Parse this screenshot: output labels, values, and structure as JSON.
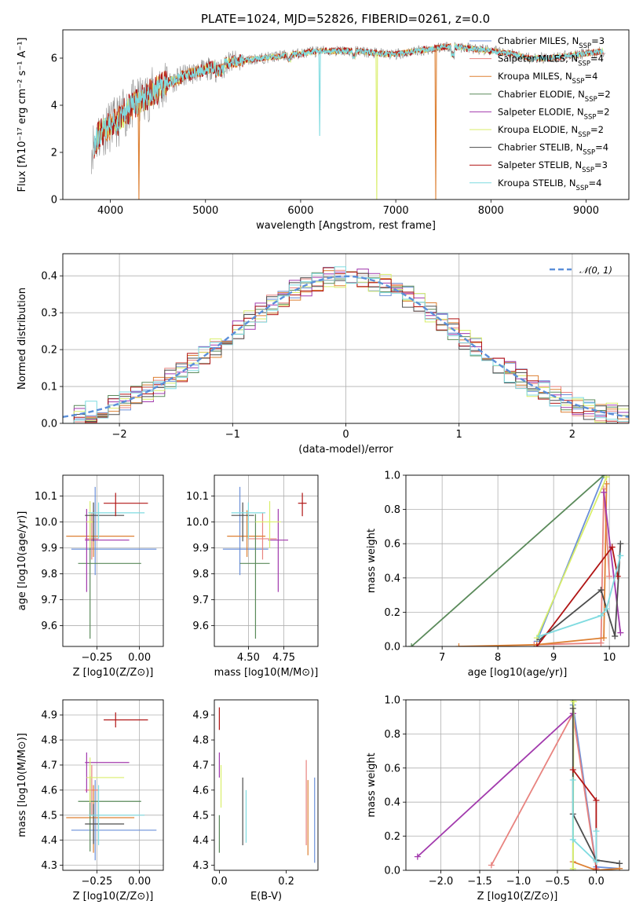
{
  "title": "PLATE=1024, MJD=52826, FIBERID=0261, z=0.0",
  "colors": {
    "Chabrier MILES": "#6a8fd8",
    "Salpeter MILES": "#e8837f",
    "Kroupa MILES": "#dd8033",
    "Chabrier ELODIE": "#5a8a5a",
    "Salpeter ELODIE": "#a23aad",
    "Kroupa ELODIE": "#d9ee6a",
    "Chabrier STELIB": "#4d4d4d",
    "Salpeter STELIB": "#b01515",
    "Kroupa STELIB": "#7fdbe0",
    "normal": "#5b8fd9",
    "spectrum_grey": "#8a8a8a",
    "grid": "#b0b0b0"
  },
  "chart_data": [
    {
      "type": "line",
      "panel": "spectrum",
      "xlabel": "wavelength [Angstrom, rest frame]",
      "ylabel": "Flux [fλ10⁻¹⁷ erg cm⁻² s⁻¹ A⁻¹]",
      "xlim": [
        3500,
        9450
      ],
      "ylim": [
        0,
        7.2
      ],
      "xticks": [
        4000,
        5000,
        6000,
        7000,
        8000,
        9000
      ],
      "yticks": [
        0,
        2,
        4,
        6
      ],
      "grid": false,
      "legend_position": "upper-right",
      "legend": [
        "Chabrier MILES, N_SSP=3",
        "Salpeter MILES, N_SSP=4",
        "Kroupa MILES, N_SSP=4",
        "Chabrier ELODIE, N_SSP=2",
        "Salpeter ELODIE, N_SSP=2",
        "Kroupa ELODIE, N_SSP=2",
        "Chabrier STELIB, N_SSP=4",
        "Salpeter STELIB, N_SSP=3",
        "Kroupa STELIB, N_SSP=4"
      ],
      "legend_colors": [
        "Chabrier MILES",
        "Salpeter MILES",
        "Kroupa MILES",
        "Chabrier ELODIE",
        "Salpeter ELODIE",
        "Kroupa ELODIE",
        "Chabrier STELIB",
        "Salpeter STELIB",
        "Kroupa STELIB"
      ],
      "continuum": {
        "x": [
          3800,
          3900,
          4000,
          4100,
          4200,
          4300,
          4400,
          4500,
          4600,
          4700,
          4800,
          5000,
          5200,
          5400,
          5600,
          5800,
          6000,
          6200,
          6400,
          6600,
          6800,
          7000,
          7200,
          7400,
          7500,
          7600,
          7800,
          8000,
          8200,
          8400,
          8600,
          8800,
          9000,
          9200
        ],
        "y": [
          2.2,
          2.9,
          3.1,
          3.4,
          3.9,
          4.1,
          4.4,
          4.7,
          4.9,
          5.1,
          5.3,
          5.5,
          5.8,
          5.9,
          6.0,
          6.1,
          6.2,
          6.3,
          6.3,
          6.3,
          6.2,
          6.15,
          6.3,
          6.4,
          6.5,
          6.5,
          6.4,
          6.3,
          6.2,
          6.0,
          6.0,
          6.1,
          6.2,
          6.3
        ]
      },
      "dips": [
        {
          "x": 4300,
          "y": 0.0,
          "series": "Kroupa MILES"
        },
        {
          "x": 6200,
          "y": 2.7,
          "series": "Kroupa STELIB"
        },
        {
          "x": 6800,
          "y": 0.0,
          "series": "Kroupa ELODIE"
        },
        {
          "x": 7420,
          "y": 0.0,
          "series": "Kroupa MILES"
        }
      ]
    },
    {
      "type": "bar",
      "panel": "residual_histogram",
      "xlabel": "(data-model)/error",
      "ylabel": "Normed distribution",
      "xlim": [
        -2.5,
        2.5
      ],
      "ylim": [
        0,
        0.46
      ],
      "xticks": [
        -2,
        -1,
        0,
        1,
        2
      ],
      "yticks": [
        0.0,
        0.1,
        0.2,
        0.3,
        0.4
      ],
      "grid": true,
      "bin_width": 0.1,
      "legend_position": "upper-right",
      "reference_curve": {
        "name": "𝒩(0, 1)",
        "style": "dashed",
        "mean": 0,
        "sigma": 1
      }
    },
    {
      "type": "scatter",
      "panel": "age_vs_Z",
      "xlabel": "Z [log10(Z/Z⊙)]",
      "ylabel": "age  [log10(age/yr)]",
      "xlim": [
        -0.45,
        0.14
      ],
      "ylim": [
        9.52,
        10.18
      ],
      "xticks": [
        -0.25,
        0.0
      ],
      "yticks": [
        9.6,
        9.7,
        9.8,
        9.9,
        10.0,
        10.1
      ],
      "grid": true,
      "series": [
        {
          "name": "Chabrier MILES",
          "x": -0.26,
          "y": 9.895,
          "xerr": [
            0.14,
            0.36
          ],
          "yerr": [
            0.1,
            0.24
          ]
        },
        {
          "name": "Salpeter MILES",
          "x": -0.28,
          "y": 9.935,
          "xerr": [
            0.04,
            0.04
          ],
          "yerr": [
            0.08,
            0.1
          ]
        },
        {
          "name": "Kroupa MILES",
          "x": -0.27,
          "y": 9.945,
          "xerr": [
            0.16,
            0.24
          ],
          "yerr": [
            0.08,
            0.1
          ]
        },
        {
          "name": "Chabrier ELODIE",
          "x": -0.29,
          "y": 9.84,
          "xerr": [
            0.07,
            0.3
          ],
          "yerr": [
            0.29,
            0.19
          ]
        },
        {
          "name": "Salpeter ELODIE",
          "x": -0.31,
          "y": 9.93,
          "xerr": [
            0.01,
            0.25
          ],
          "yerr": [
            0.2,
            0.12
          ]
        },
        {
          "name": "Kroupa ELODIE",
          "x": -0.29,
          "y": 10.0,
          "xerr": [
            0.02,
            0.02
          ],
          "yerr": [
            0.1,
            0.08
          ]
        },
        {
          "name": "Chabrier STELIB",
          "x": -0.27,
          "y": 10.025,
          "xerr": [
            0.05,
            0.18
          ],
          "yerr": [
            0.1,
            0.05
          ]
        },
        {
          "name": "Kroupa STELIB",
          "x": -0.24,
          "y": 10.035,
          "xerr": [
            0.06,
            0.27
          ],
          "yerr": [
            0.1,
            0.04
          ]
        },
        {
          "name": "Salpeter STELIB",
          "x": -0.14,
          "y": 10.072,
          "xerr": [
            0.07,
            0.19
          ],
          "yerr": [
            0.05,
            0.04
          ]
        }
      ]
    },
    {
      "type": "scatter",
      "panel": "age_vs_mass",
      "xlabel": "mass [log10(M/M⊙)]",
      "ylabel": "",
      "xlim": [
        4.26,
        4.99
      ],
      "ylim": [
        9.52,
        10.18
      ],
      "xticks": [
        4.5,
        4.75
      ],
      "yticks": [
        9.6,
        9.7,
        9.8,
        9.9,
        10.0,
        10.1
      ],
      "grid": true,
      "series": [
        {
          "name": "Chabrier MILES",
          "x": 4.44,
          "y": 9.895,
          "xerr": [
            0.12,
            0.2
          ],
          "yerr": [
            0.1,
            0.24
          ]
        },
        {
          "name": "Salpeter MILES",
          "x": 4.6,
          "y": 9.935,
          "xerr": [
            0.1,
            0.1
          ],
          "yerr": [
            0.08,
            0.1
          ]
        },
        {
          "name": "Kroupa MILES",
          "x": 4.49,
          "y": 9.945,
          "xerr": [
            0.14,
            0.13
          ],
          "yerr": [
            0.08,
            0.1
          ]
        },
        {
          "name": "Chabrier ELODIE",
          "x": 4.55,
          "y": 9.84,
          "xerr": [
            0.11,
            0.1
          ],
          "yerr": [
            0.29,
            0.19
          ]
        },
        {
          "name": "Salpeter ELODIE",
          "x": 4.71,
          "y": 9.93,
          "xerr": [
            0.07,
            0.07
          ],
          "yerr": [
            0.2,
            0.12
          ]
        },
        {
          "name": "Kroupa ELODIE",
          "x": 4.65,
          "y": 10.0,
          "xerr": [
            0.1,
            0.08
          ],
          "yerr": [
            0.1,
            0.08
          ]
        },
        {
          "name": "Chabrier STELIB",
          "x": 4.46,
          "y": 10.025,
          "xerr": [
            0.08,
            0.08
          ],
          "yerr": [
            0.1,
            0.05
          ]
        },
        {
          "name": "Kroupa STELIB",
          "x": 4.5,
          "y": 10.035,
          "xerr": [
            0.12,
            0.12
          ],
          "yerr": [
            0.1,
            0.04
          ]
        },
        {
          "name": "Salpeter STELIB",
          "x": 4.88,
          "y": 10.072,
          "xerr": [
            0.03,
            0.03
          ],
          "yerr": [
            0.05,
            0.04
          ]
        }
      ]
    },
    {
      "type": "line",
      "panel": "mass_weight_vs_age",
      "xlabel": "age  [log10(age/yr)]",
      "ylabel": "mass weight",
      "xlim": [
        6.35,
        10.35
      ],
      "ylim": [
        0,
        1
      ],
      "xticks": [
        7,
        8,
        9,
        10
      ],
      "yticks": [
        0.0,
        0.2,
        0.4,
        0.6,
        0.8,
        1.0
      ],
      "grid": true,
      "series": [
        {
          "name": "Chabrier MILES",
          "x": [
            8.7,
            9.9
          ],
          "y": [
            0.03,
            1.0
          ]
        },
        {
          "name": "Salpeter MILES",
          "x": [
            8.65,
            9.85,
            9.9,
            10.0
          ],
          "y": [
            0.01,
            0.02,
            0.92,
            0.41
          ]
        },
        {
          "name": "Kroupa MILES",
          "x": [
            7.3,
            8.7,
            9.9,
            9.95
          ],
          "y": [
            0.0,
            0.01,
            0.05,
            0.95
          ]
        },
        {
          "name": "Chabrier ELODIE",
          "x": [
            6.45,
            9.9
          ],
          "y": [
            0.0,
            1.0
          ]
        },
        {
          "name": "Salpeter ELODIE",
          "x": [
            9.9,
            10.2
          ],
          "y": [
            0.9,
            0.08
          ]
        },
        {
          "name": "Kroupa ELODIE",
          "x": [
            8.7,
            9.95
          ],
          "y": [
            0.05,
            0.99
          ]
        },
        {
          "name": "Chabrier STELIB",
          "x": [
            8.75,
            9.85,
            10.1,
            10.2
          ],
          "y": [
            0.04,
            0.33,
            0.06,
            0.6
          ]
        },
        {
          "name": "Salpeter STELIB",
          "x": [
            8.7,
            10.05,
            10.15
          ],
          "y": [
            0.0,
            0.58,
            0.41
          ]
        },
        {
          "name": "Kroupa STELIB",
          "x": [
            8.75,
            9.85,
            9.95,
            10.2
          ],
          "y": [
            0.06,
            0.18,
            0.22,
            0.53
          ]
        }
      ]
    },
    {
      "type": "scatter",
      "panel": "mass_vs_Z",
      "xlabel": "Z [log10(Z/Z⊙)]",
      "ylabel": "mass [log10(M/M⊙)]",
      "xlim": [
        -0.45,
        0.14
      ],
      "ylim": [
        4.28,
        4.96
      ],
      "xticks": [
        -0.25,
        0.0
      ],
      "yticks": [
        4.3,
        4.4,
        4.5,
        4.6,
        4.7,
        4.8,
        4.9
      ],
      "grid": true,
      "series": [
        {
          "name": "Chabrier MILES",
          "x": -0.26,
          "y": 4.44,
          "xerr": [
            0.14,
            0.36
          ],
          "yerr": [
            0.12,
            0.2
          ]
        },
        {
          "name": "Salpeter MILES",
          "x": -0.28,
          "y": 4.6,
          "xerr": [
            0.04,
            0.04
          ],
          "yerr": [
            0.1,
            0.1
          ]
        },
        {
          "name": "Kroupa MILES",
          "x": -0.27,
          "y": 4.49,
          "xerr": [
            0.16,
            0.24
          ],
          "yerr": [
            0.14,
            0.13
          ]
        },
        {
          "name": "Chabrier ELODIE",
          "x": -0.29,
          "y": 4.555,
          "xerr": [
            0.07,
            0.3
          ],
          "yerr": [
            0.2,
            0.1
          ]
        },
        {
          "name": "Salpeter ELODIE",
          "x": -0.31,
          "y": 4.71,
          "xerr": [
            0.01,
            0.25
          ],
          "yerr": [
            0.12,
            0.04
          ]
        },
        {
          "name": "Kroupa ELODIE",
          "x": -0.29,
          "y": 4.65,
          "xerr": [
            0.02,
            0.2
          ],
          "yerr": [
            0.1,
            0.08
          ]
        },
        {
          "name": "Chabrier STELIB",
          "x": -0.27,
          "y": 4.465,
          "xerr": [
            0.05,
            0.18
          ],
          "yerr": [
            0.08,
            0.08
          ]
        },
        {
          "name": "Kroupa STELIB",
          "x": -0.24,
          "y": 4.5,
          "xerr": [
            0.06,
            0.27
          ],
          "yerr": [
            0.12,
            0.12
          ]
        },
        {
          "name": "Salpeter STELIB",
          "x": -0.14,
          "y": 4.88,
          "xerr": [
            0.07,
            0.19
          ],
          "yerr": [
            0.03,
            0.03
          ]
        }
      ]
    },
    {
      "type": "scatter",
      "panel": "mass_vs_EBV",
      "xlabel": "E(B-V)",
      "ylabel": "",
      "xlim": [
        -0.015,
        0.295
      ],
      "ylim": [
        4.28,
        4.96
      ],
      "xticks": [
        0.0,
        0.2
      ],
      "yticks": [
        4.3,
        4.4,
        4.5,
        4.6,
        4.7,
        4.8,
        4.9
      ],
      "grid": false,
      "series": [
        {
          "name": "Salpeter STELIB",
          "x": 0.0,
          "y": 4.88,
          "xerr": [
            0,
            0
          ],
          "yerr": [
            0.04,
            0.05
          ]
        },
        {
          "name": "Salpeter ELODIE",
          "x": 0.0,
          "y": 4.69,
          "xerr": [
            0,
            0
          ],
          "yerr": [
            0.04,
            0.06
          ]
        },
        {
          "name": "Chabrier ELODIE",
          "x": 0.0,
          "y": 4.42,
          "xerr": [
            0,
            0
          ],
          "yerr": [
            0.07,
            0.08
          ]
        },
        {
          "name": "Kroupa ELODIE",
          "x": 0.005,
          "y": 4.61,
          "xerr": [
            0,
            0
          ],
          "yerr": [
            0.08,
            0.09
          ]
        },
        {
          "name": "Chabrier STELIB",
          "x": 0.07,
          "y": 4.52,
          "xerr": [
            0,
            0
          ],
          "yerr": [
            0.14,
            0.13
          ]
        },
        {
          "name": "Kroupa STELIB",
          "x": 0.08,
          "y": 4.49,
          "xerr": [
            0,
            0
          ],
          "yerr": [
            0.1,
            0.11
          ]
        },
        {
          "name": "Salpeter MILES",
          "x": 0.26,
          "y": 4.6,
          "xerr": [
            0,
            0
          ],
          "yerr": [
            0.22,
            0.12
          ]
        },
        {
          "name": "Kroupa MILES",
          "x": 0.265,
          "y": 4.49,
          "xerr": [
            0,
            0
          ],
          "yerr": [
            0.15,
            0.15
          ]
        },
        {
          "name": "Chabrier MILES",
          "x": 0.285,
          "y": 4.48,
          "xerr": [
            0,
            0
          ],
          "yerr": [
            0.17,
            0.17
          ]
        }
      ]
    },
    {
      "type": "line",
      "panel": "mass_weight_vs_Z",
      "xlabel": "Z [log10(Z/Z⊙)]",
      "ylabel": "mass weight",
      "xlim": [
        -2.45,
        0.42
      ],
      "ylim": [
        0,
        1
      ],
      "xticks": [
        -2.0,
        -1.5,
        -1.0,
        -0.5,
        0.0
      ],
      "yticks": [
        0.0,
        0.2,
        0.4,
        0.6,
        0.8,
        1.0
      ],
      "grid": true,
      "series": [
        {
          "name": "Chabrier MILES",
          "x": [
            -0.3,
            0.0,
            0.3
          ],
          "y": [
            0.97,
            0.02,
            0.01
          ]
        },
        {
          "name": "Salpeter MILES",
          "x": [
            -1.35,
            -0.3,
            0.0
          ],
          "y": [
            0.03,
            0.92,
            0.01
          ]
        },
        {
          "name": "Kroupa MILES",
          "x": [
            -0.3,
            0.0,
            0.3
          ],
          "y": [
            0.05,
            0.0,
            0.01
          ]
        },
        {
          "name": "Chabrier ELODIE",
          "x": [
            -0.3,
            -0.3
          ],
          "y": [
            0.0,
            1.0
          ]
        },
        {
          "name": "Salpeter ELODIE",
          "x": [
            -2.3,
            -0.3
          ],
          "y": [
            0.08,
            0.92
          ]
        },
        {
          "name": "Kroupa ELODIE",
          "x": [
            -0.3,
            -0.29
          ],
          "y": [
            0.01,
            0.99
          ]
        },
        {
          "name": "Chabrier STELIB",
          "x": [
            -0.3,
            -0.3,
            0.0,
            0.3
          ],
          "y": [
            0.95,
            0.33,
            0.06,
            0.04
          ]
        },
        {
          "name": "Salpeter STELIB",
          "x": [
            -0.3,
            0.0,
            0.0
          ],
          "y": [
            0.59,
            0.41,
            0.0
          ]
        },
        {
          "name": "Kroupa STELIB",
          "x": [
            -0.3,
            -0.3,
            0.0,
            0.0
          ],
          "y": [
            0.53,
            0.18,
            0.05,
            0.23
          ]
        }
      ]
    }
  ]
}
